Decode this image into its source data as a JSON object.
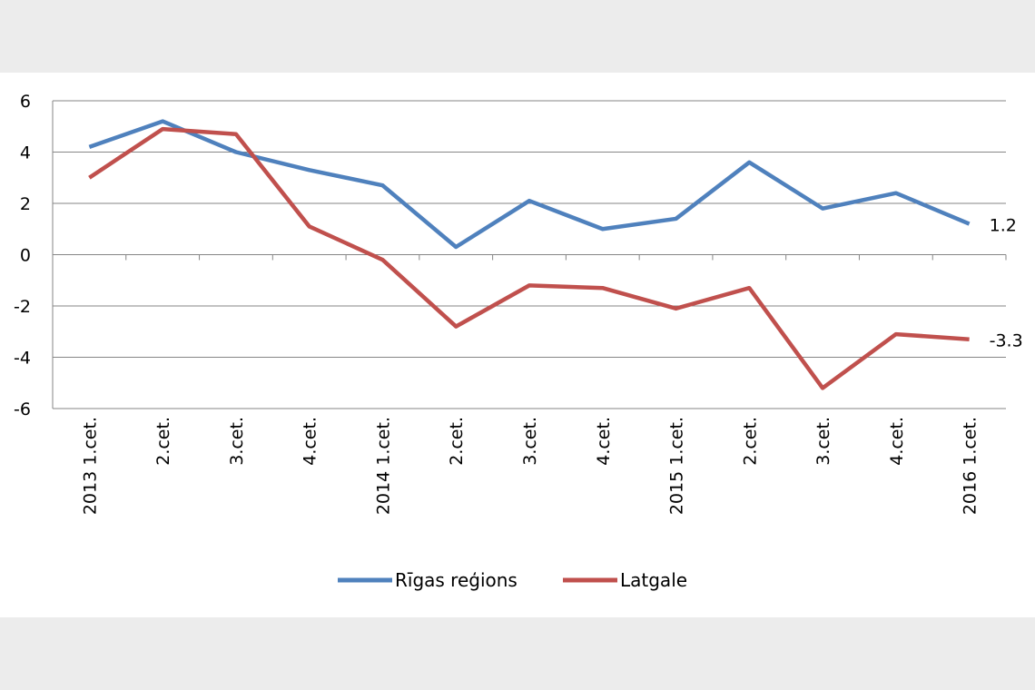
{
  "chart_data": {
    "type": "line",
    "title": "",
    "xlabel": "",
    "ylabel": "",
    "ylim": [
      -6,
      6
    ],
    "yticks": [
      6,
      4,
      2,
      0,
      -2,
      -4,
      -6
    ],
    "grid": true,
    "legend_position": "bottom",
    "categories": [
      "2013 1.cet.",
      "2.cet.",
      "3.cet.",
      "4.cet.",
      "2014 1.cet.",
      "2.cet.",
      "3.cet.",
      "4.cet.",
      "2015 1.cet.",
      "2.cet.",
      "3.cet.",
      "4.cet.",
      "2016 1.cet."
    ],
    "series": [
      {
        "name": "Rīgas reģions",
        "color": "#4f81bd",
        "values": [
          4.2,
          5.2,
          4.0,
          3.3,
          2.7,
          0.3,
          2.1,
          1.0,
          1.4,
          3.6,
          1.8,
          2.4,
          1.2
        ],
        "end_label": "1.2"
      },
      {
        "name": "Latgale",
        "color": "#c0504d",
        "values": [
          3.0,
          4.9,
          4.7,
          1.1,
          -0.2,
          -2.8,
          -1.2,
          -1.3,
          -2.1,
          -1.3,
          -5.2,
          -3.1,
          -3.3
        ],
        "end_label": "-3.3"
      }
    ]
  }
}
